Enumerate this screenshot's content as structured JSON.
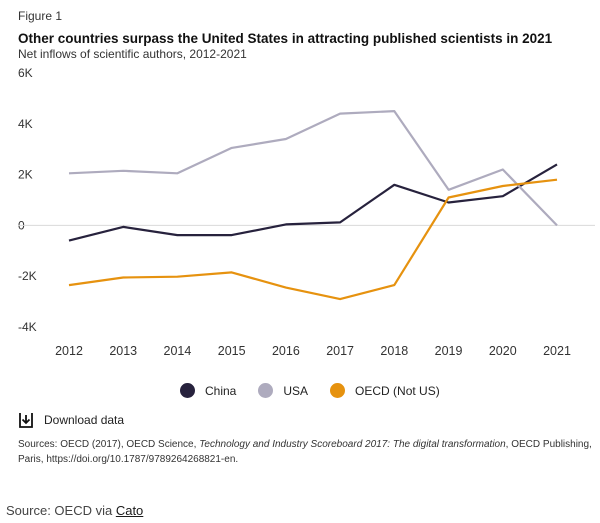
{
  "figure_label": "Figure 1",
  "chart_data": {
    "type": "line",
    "title": "Other countries surpass the United States in attracting published scientists in 2021",
    "subtitle": "Net inflows of scientific authors, 2012-2021",
    "xlabel": "",
    "ylabel": "",
    "x": [
      2012,
      2013,
      2014,
      2015,
      2016,
      2017,
      2018,
      2019,
      2020,
      2021
    ],
    "y_ticks": [
      {
        "value": 6000,
        "label": "6K"
      },
      {
        "value": 4000,
        "label": "4K"
      },
      {
        "value": 2000,
        "label": "2K"
      },
      {
        "value": 0,
        "label": "0"
      },
      {
        "value": -2000,
        "label": "-2K"
      },
      {
        "value": -4000,
        "label": "-4K"
      }
    ],
    "ylim": [
      -4000,
      6000
    ],
    "grid": false,
    "legend_position": "bottom",
    "series": [
      {
        "name": "China",
        "color": "#27223d",
        "values": [
          -600,
          -60,
          -380,
          -380,
          40,
          120,
          1600,
          900,
          1150,
          2400
        ]
      },
      {
        "name": "USA",
        "color": "#aeabbe",
        "values": [
          2050,
          2150,
          2050,
          3050,
          3400,
          4400,
          4500,
          1400,
          2200,
          0
        ]
      },
      {
        "name": "OECD (Not US)",
        "color": "#e6920f",
        "values": [
          -2350,
          -2050,
          -2020,
          -1850,
          -2450,
          -2900,
          -2350,
          1100,
          1550,
          1800
        ]
      }
    ]
  },
  "download": {
    "icon": "download-icon",
    "label": "Download data"
  },
  "sources": {
    "prefix": "Sources: OECD (2017), OECD Science, ",
    "title": "Technology and Industry Scoreboard 2017: The digital transformation",
    "suffix": ", OECD Publishing, Paris, https://doi.org/10.1787/9789264268821-en."
  },
  "credit": {
    "prefix": "Source: OECD via ",
    "link": "Cato"
  }
}
